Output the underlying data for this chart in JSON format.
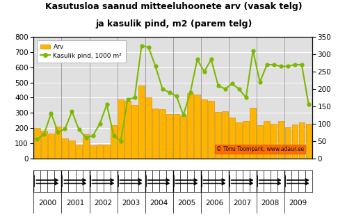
{
  "title_line1": "Kasutusloa saanud mitteeluhoonete arv (vasak telg)",
  "title_line2": "ja kasulik pind, m2 (parem telg)",
  "bar_label": "Arv",
  "line_label": "Kasulik pind, 1000 m²",
  "watermark": "© Tõnu Toompark, www.adaur.ee",
  "bar_color": "#FFB400",
  "bar_edge_color": "#CC8800",
  "line_color": "#7CB800",
  "background_color": "#FFFFFF",
  "plot_bg_color": "#E8E8E8",
  "ylim_left": [
    0,
    800
  ],
  "ylim_right": [
    0,
    350
  ],
  "yticks_left": [
    0,
    100,
    200,
    300,
    400,
    500,
    600,
    700,
    800
  ],
  "yticks_right": [
    0,
    50,
    100,
    150,
    200,
    250,
    300,
    350
  ],
  "bar_values": [
    200,
    180,
    165,
    210,
    130,
    120,
    90,
    160,
    85,
    90,
    90,
    220,
    390,
    380,
    350,
    480,
    400,
    330,
    325,
    290,
    290,
    285,
    430,
    420,
    390,
    380,
    305,
    310,
    270,
    235,
    245,
    335,
    220,
    245,
    230,
    245,
    205,
    225,
    235,
    230
  ],
  "line_values": [
    55,
    70,
    130,
    75,
    85,
    135,
    83,
    60,
    65,
    100,
    155,
    65,
    50,
    170,
    175,
    325,
    320,
    265,
    200,
    190,
    180,
    125,
    190,
    285,
    250,
    285,
    210,
    200,
    215,
    200,
    175,
    310,
    220,
    270,
    270,
    265,
    265,
    270,
    270,
    155
  ],
  "xlabel_years": [
    2000,
    2001,
    2002,
    2003,
    2004,
    2005,
    2006,
    2007,
    2008,
    2009
  ],
  "tick_label_fontsize": 7.5,
  "title_fontsize": 9
}
